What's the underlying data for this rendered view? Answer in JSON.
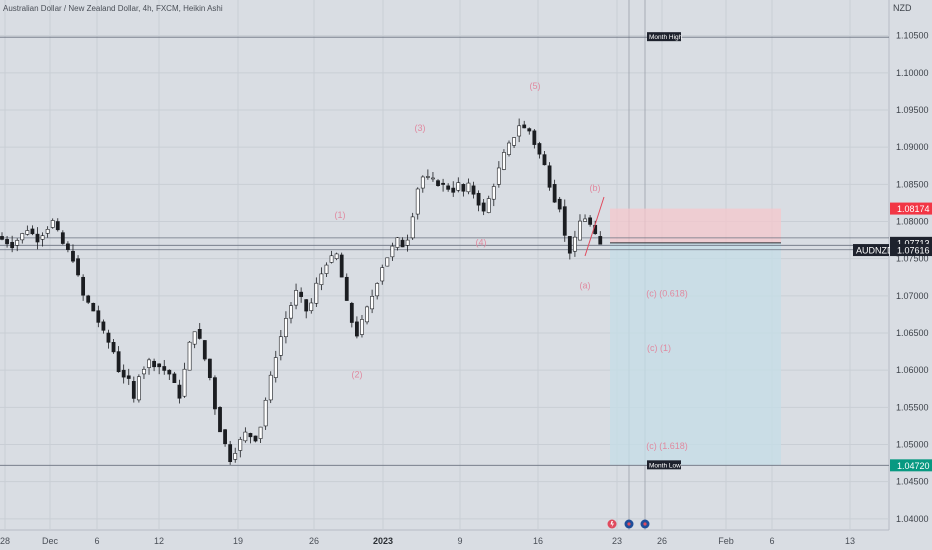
{
  "header": {
    "title": "Australian Dollar / New Zealand Dollar, 4h, FXCM, Heikin Ashi",
    "currency": "NZD"
  },
  "chart_data": {
    "type": "candlestick",
    "symbol": "AUDNZD",
    "ylim": [
      1.0385,
      1.1098
    ],
    "y_ticks": [
      "1.10500",
      "1.10000",
      "1.09500",
      "1.09000",
      "1.08500",
      "1.08000",
      "1.07500",
      "1.07000",
      "1.06500",
      "1.06000",
      "1.05500",
      "1.05000",
      "1.04500",
      "1.04000"
    ],
    "x_ticks": [
      "28",
      "Dec",
      "6",
      "12",
      "19",
      "26",
      "2023",
      "9",
      "16",
      "23",
      "26",
      "Feb",
      "6",
      "13"
    ],
    "price_path": [
      [
        0,
        1.078
      ],
      [
        3,
        1.0768
      ],
      [
        6,
        1.079
      ],
      [
        8,
        1.0776
      ],
      [
        11,
        1.08
      ],
      [
        13,
        1.077
      ],
      [
        15,
        1.075
      ],
      [
        17,
        1.07
      ],
      [
        19,
        1.068
      ],
      [
        21,
        1.065
      ],
      [
        23,
        1.0625
      ],
      [
        24,
        1.06
      ],
      [
        26,
        1.0585
      ],
      [
        27,
        1.056
      ],
      [
        28,
        1.0595
      ],
      [
        30,
        1.0612
      ],
      [
        32,
        1.0605
      ],
      [
        34,
        1.0595
      ],
      [
        35,
        1.058
      ],
      [
        36,
        1.0565
      ],
      [
        37,
        1.06
      ],
      [
        38,
        1.0635
      ],
      [
        39,
        1.0655
      ],
      [
        40,
        1.064
      ],
      [
        41,
        1.0615
      ],
      [
        42,
        1.059
      ],
      [
        43,
        1.055
      ],
      [
        44,
        1.052
      ],
      [
        45,
        1.05
      ],
      [
        46,
        1.048
      ],
      [
        47,
        1.0492
      ],
      [
        48,
        1.0505
      ],
      [
        49,
        1.0515
      ],
      [
        51,
        1.0508
      ],
      [
        52,
        1.0525
      ],
      [
        53,
        1.056
      ],
      [
        55,
        1.062
      ],
      [
        57,
        1.067
      ],
      [
        59,
        1.0705
      ],
      [
        60,
        1.0695
      ],
      [
        61,
        1.068
      ],
      [
        62,
        1.069
      ],
      [
        63,
        1.0715
      ],
      [
        65,
        1.0745
      ],
      [
        67,
        1.0755
      ],
      [
        68,
        1.0725
      ],
      [
        69,
        1.069
      ],
      [
        70,
        1.0665
      ],
      [
        71,
        1.0648
      ],
      [
        72,
        1.0665
      ],
      [
        74,
        1.07
      ],
      [
        76,
        1.074
      ],
      [
        78,
        1.0765
      ],
      [
        79,
        1.0775
      ],
      [
        80,
        1.0768
      ],
      [
        81,
        1.0778
      ],
      [
        82,
        1.081
      ],
      [
        83,
        1.0845
      ],
      [
        84,
        1.086
      ],
      [
        86,
        1.0855
      ],
      [
        88,
        1.0848
      ],
      [
        90,
        1.0842
      ],
      [
        91,
        1.085
      ],
      [
        92,
        1.084
      ],
      [
        93,
        1.0848
      ],
      [
        94,
        1.0838
      ],
      [
        95,
        1.0825
      ],
      [
        96,
        1.0812
      ],
      [
        97,
        1.083
      ],
      [
        98,
        1.085
      ],
      [
        99,
        1.087
      ],
      [
        100,
        1.089
      ],
      [
        102,
        1.0915
      ],
      [
        103,
        1.093
      ],
      [
        104,
        1.0925
      ],
      [
        105,
        1.0922
      ],
      [
        106,
        1.0905
      ],
      [
        107,
        1.089
      ],
      [
        108,
        1.0875
      ],
      [
        109,
        1.085
      ],
      [
        110,
        1.083
      ],
      [
        111,
        1.082
      ],
      [
        112,
        1.078
      ],
      [
        113,
        1.076
      ],
      [
        114,
        1.0775
      ],
      [
        115,
        1.08
      ],
      [
        116,
        1.0805
      ],
      [
        117,
        1.0795
      ],
      [
        118,
        1.078
      ],
      [
        119,
        1.0768
      ]
    ],
    "drawn_levels": [
      {
        "label": "Month High",
        "value": 1.1048
      },
      {
        "label": "Month Low",
        "value": 1.0472
      },
      {
        "label": "",
        "value": 1.0778
      },
      {
        "label": "",
        "value": 1.0768
      },
      {
        "label": "",
        "value": 1.0762
      }
    ],
    "price_tags": [
      {
        "label": "1.08174",
        "value": 1.08174,
        "color": "#f23645",
        "text_color": "#ffffff"
      },
      {
        "label": "1.07713",
        "value": 1.07713,
        "color": "#1e222d",
        "text_color": "#ffffff"
      },
      {
        "label": "1.07616",
        "value": 1.07616,
        "color": "#1e222d",
        "text_color": "#ffffff",
        "symbol": "AUDNZD"
      },
      {
        "label": "1.04720",
        "value": 1.0472,
        "color": "#089981",
        "text_color": "#ffffff"
      }
    ],
    "position": {
      "entry": 1.07713,
      "stop": 1.08174,
      "target": 1.0472,
      "stop_color": "#f4c7cc",
      "target_color": "#c6dde6"
    },
    "annotations": [
      {
        "text": "(1)",
        "x": 340,
        "y": 1.0805
      },
      {
        "text": "(2)",
        "x": 357,
        "y": 1.059
      },
      {
        "text": "(3)",
        "x": 420,
        "y": 1.0922
      },
      {
        "text": "(4)",
        "x": 481,
        "y": 1.0768
      },
      {
        "text": "(5)",
        "x": 535,
        "y": 1.0978
      },
      {
        "text": "(a)",
        "x": 585,
        "y": 1.071
      },
      {
        "text": "(b)",
        "x": 595,
        "y": 1.0841
      },
      {
        "text": "(c) (0.618)",
        "x": 667,
        "y": 1.0699
      },
      {
        "text": "(c) (1)",
        "x": 659,
        "y": 1.0626
      },
      {
        "text": "(c) (1.618)",
        "x": 667,
        "y": 1.0494
      }
    ]
  }
}
